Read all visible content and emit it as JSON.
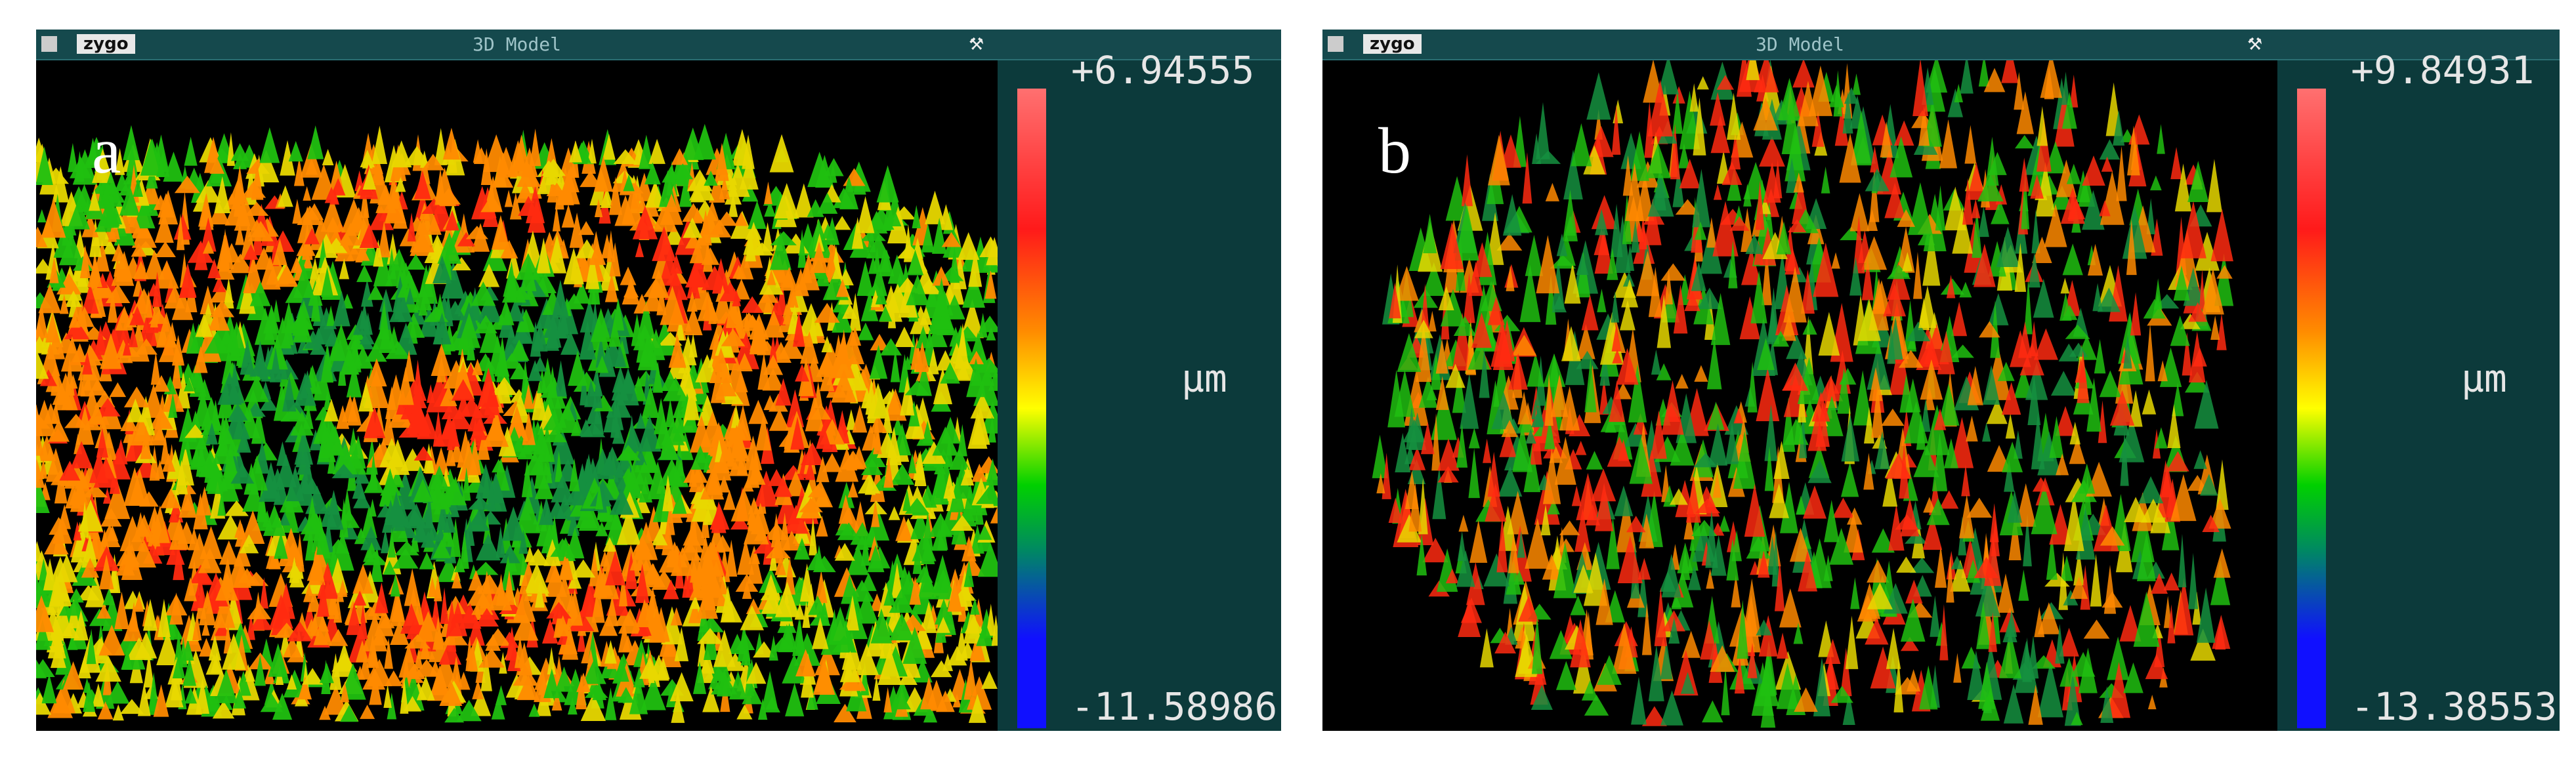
{
  "panels": [
    {
      "label": "a",
      "logo": "zygo",
      "title": "3D Model",
      "scale": {
        "max": "+6.94555",
        "min": "-11.58986",
        "unit": "µm"
      }
    },
    {
      "label": "b",
      "logo": "zygo",
      "title": "3D Model",
      "scale": {
        "max": "+9.84931",
        "min": "-13.38553",
        "unit": "µm"
      }
    }
  ]
}
